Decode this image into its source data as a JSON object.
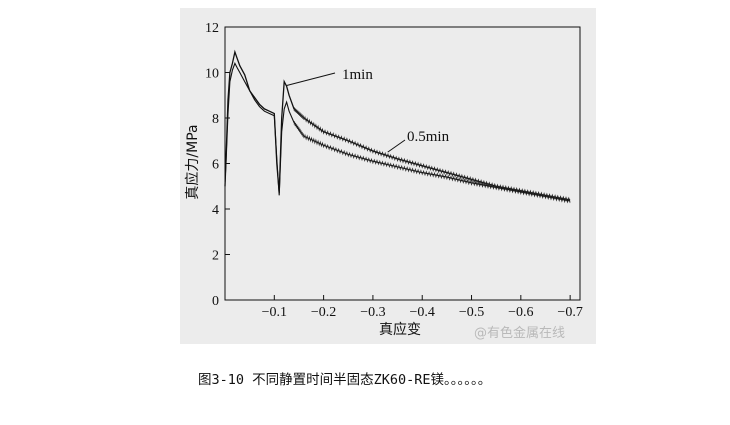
{
  "caption": "图3-10 不同静置时间半固态ZK60-RE镁。。。。。。",
  "watermark": "@有色金属在线",
  "chart_data": {
    "type": "line",
    "xlabel": "真应变",
    "ylabel": "真应力/MPa",
    "xlim": [
      0,
      -0.72
    ],
    "ylim": [
      0,
      12
    ],
    "x_ticks": [
      -0.1,
      -0.2,
      -0.3,
      -0.4,
      -0.5,
      -0.6,
      -0.7
    ],
    "x_tick_labels": [
      "−0.1",
      "−0.2",
      "−0.3",
      "−0.4",
      "−0.5",
      "−0.6",
      "−0.7"
    ],
    "y_ticks": [
      0,
      2,
      4,
      6,
      8,
      10,
      12
    ],
    "y_tick_labels": [
      "0",
      "2",
      "4",
      "6",
      "8",
      "10",
      "12"
    ],
    "grid": false,
    "series": [
      {
        "name": "1min",
        "x": [
          0,
          -0.002,
          -0.006,
          -0.01,
          -0.015,
          -0.02,
          -0.025,
          -0.03,
          -0.04,
          -0.05,
          -0.06,
          -0.07,
          -0.08,
          -0.09,
          -0.1,
          -0.105,
          -0.11,
          -0.115,
          -0.12,
          -0.125,
          -0.13,
          -0.14,
          -0.16,
          -0.2,
          -0.25,
          -0.3,
          -0.35,
          -0.4,
          -0.45,
          -0.5,
          -0.55,
          -0.6,
          -0.65,
          -0.7
        ],
        "y": [
          5.0,
          6.2,
          8.8,
          10.0,
          10.4,
          10.9,
          10.6,
          10.3,
          9.9,
          9.2,
          8.9,
          8.6,
          8.4,
          8.3,
          8.2,
          6.0,
          4.7,
          8.0,
          9.6,
          9.4,
          9.0,
          8.4,
          8.0,
          7.4,
          7.0,
          6.55,
          6.2,
          5.9,
          5.6,
          5.3,
          5.0,
          4.8,
          4.6,
          4.4
        ]
      },
      {
        "name": "0.5min",
        "x": [
          0,
          -0.002,
          -0.006,
          -0.01,
          -0.015,
          -0.02,
          -0.025,
          -0.03,
          -0.04,
          -0.05,
          -0.06,
          -0.07,
          -0.08,
          -0.09,
          -0.1,
          -0.105,
          -0.11,
          -0.115,
          -0.12,
          -0.125,
          -0.13,
          -0.14,
          -0.16,
          -0.2,
          -0.25,
          -0.3,
          -0.35,
          -0.4,
          -0.45,
          -0.5,
          -0.55,
          -0.6,
          -0.65,
          -0.7
        ],
        "y": [
          5.2,
          6.0,
          8.2,
          9.6,
          10.1,
          10.4,
          10.2,
          10.0,
          9.6,
          9.2,
          8.8,
          8.5,
          8.3,
          8.2,
          8.1,
          6.2,
          4.6,
          7.4,
          8.4,
          8.7,
          8.3,
          7.8,
          7.2,
          6.8,
          6.4,
          6.1,
          5.85,
          5.6,
          5.4,
          5.15,
          4.95,
          4.75,
          4.55,
          4.35
        ]
      }
    ],
    "annotations": [
      {
        "text": "1min",
        "series": "1min"
      },
      {
        "text": "0.5min",
        "series": "0.5min"
      }
    ]
  }
}
